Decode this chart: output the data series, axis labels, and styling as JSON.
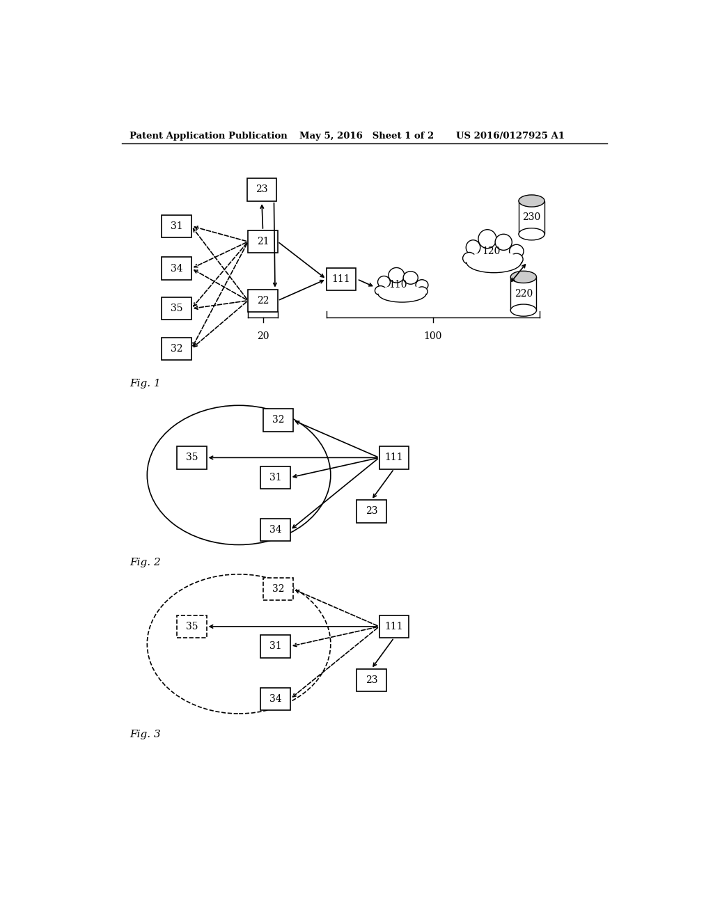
{
  "header_left": "Patent Application Publication",
  "header_mid": "May 5, 2016   Sheet 1 of 2",
  "header_right": "US 2016/0127925 A1",
  "fig1_label": "Fig. 1",
  "fig2_label": "Fig. 2",
  "fig3_label": "Fig. 3",
  "background": "#ffffff"
}
